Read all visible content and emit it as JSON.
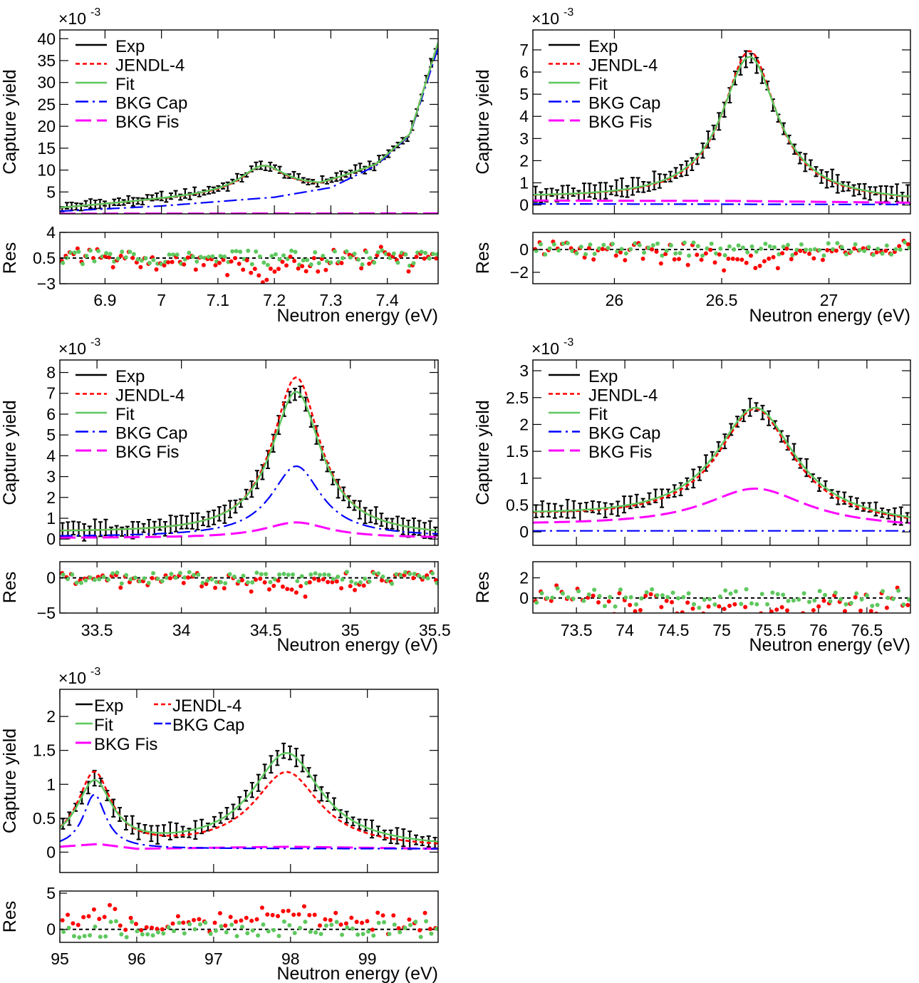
{
  "legend_labels": [
    "Exp",
    "JENDL-4",
    "Fit",
    "BKG Cap",
    "BKG Fis"
  ],
  "axis_labels": {
    "capture": "Capture yield",
    "residual": "Res",
    "energy": "Neutron energy (eV)",
    "exponent": "×10",
    "exponent_power": "-3"
  },
  "colors": {
    "exp": "#000000",
    "jendl": "#ff0000",
    "fit": "#5ec85e",
    "bkg_cap": "#0000ff",
    "bkg_fis": "#ff00ff"
  },
  "chart_data": [
    {
      "type": "line",
      "xlim": [
        6.82,
        7.49
      ],
      "ylim": [
        0,
        42
      ],
      "yticks": [
        5,
        10,
        15,
        20,
        25,
        30,
        35,
        40
      ],
      "res_ylim": [
        -3,
        4
      ],
      "res_ticks": [
        -3,
        0.5,
        4
      ],
      "xticks": [
        6.9,
        7.0,
        7.1,
        7.2,
        7.3,
        7.4
      ],
      "xticklabels": [
        "6.9",
        "7",
        "7.1",
        "7.2",
        "7.3",
        "7.4"
      ],
      "legend": "top-left",
      "peaks": [
        {
          "x": 7.18,
          "h": 6.0,
          "g": 0.05
        }
      ],
      "fit_base": [
        [
          6.82,
          1.3
        ],
        [
          7.0,
          3.2
        ],
        [
          7.28,
          6.0
        ],
        [
          7.38,
          11.0
        ],
        [
          7.44,
          18.0
        ],
        [
          7.49,
          39.0
        ]
      ],
      "cap_base": [
        [
          6.82,
          0.6
        ],
        [
          7.0,
          1.8
        ],
        [
          7.2,
          3.8
        ],
        [
          7.3,
          6.0
        ],
        [
          7.38,
          11.0
        ],
        [
          7.44,
          18.0
        ],
        [
          7.49,
          38.0
        ]
      ],
      "fis_base": [
        [
          6.82,
          0.05
        ],
        [
          7.49,
          0.1
        ]
      ],
      "jendl_scale": 1.0,
      "exp_points": 80,
      "res_spread": 1.5
    },
    {
      "type": "line",
      "xlim": [
        25.62,
        27.38
      ],
      "ylim": [
        -0.4,
        7.9
      ],
      "yticks": [
        0,
        1,
        2,
        3,
        4,
        5,
        6,
        7
      ],
      "res_ylim": [
        -3,
        1.5
      ],
      "res_ticks": [
        -2,
        0
      ],
      "xticks": [
        26.0,
        26.5,
        27.0
      ],
      "xticklabels": [
        "26",
        "26.5",
        "27"
      ],
      "legend": "top-left",
      "peaks": [
        {
          "x": 26.63,
          "h": 6.5,
          "g": 0.16
        }
      ],
      "fit_base": [
        [
          25.62,
          0.3
        ],
        [
          27.38,
          0.1
        ]
      ],
      "cap_base": [
        [
          25.62,
          0.05
        ],
        [
          27.38,
          0.02
        ]
      ],
      "fis_base": [
        [
          25.62,
          0.2
        ],
        [
          26.6,
          0.18
        ],
        [
          27.38,
          0.1
        ]
      ],
      "jendl_scale": 1.04,
      "exp_points": 70,
      "res_spread": 0.9
    },
    {
      "type": "line",
      "xlim": [
        33.28,
        35.52
      ],
      "ylim": [
        -0.3,
        8.6
      ],
      "yticks": [
        0,
        1,
        2,
        3,
        4,
        5,
        6,
        7,
        8
      ],
      "res_ylim": [
        -5,
        2.3
      ],
      "res_ticks": [
        -5,
        0
      ],
      "xticks": [
        33.5,
        34.0,
        34.5,
        35.0,
        35.5
      ],
      "xticklabels": [
        "33.5",
        "34",
        "34.5",
        "35",
        "35.5"
      ],
      "legend": "top-left",
      "peaks": [
        {
          "x": 34.68,
          "h": 6.9,
          "g": 0.18
        }
      ],
      "fit_base": [
        [
          33.28,
          0.3
        ],
        [
          35.52,
          0.1
        ]
      ],
      "cap_base": [
        [
          33.28,
          0.1
        ],
        [
          34.68,
          2.8
        ],
        [
          35.52,
          0.05
        ]
      ],
      "cap_peak": true,
      "fis_base": [
        [
          33.28,
          0.05
        ],
        [
          34.68,
          0.8
        ],
        [
          35.52,
          0.05
        ]
      ],
      "fis_peak": true,
      "jendl_scale": 1.1,
      "exp_points": 70,
      "res_spread": 1.2
    },
    {
      "type": "line",
      "xlim": [
        73.05,
        76.95
      ],
      "ylim": [
        -0.25,
        3.2
      ],
      "yticks": [
        0,
        0.5,
        1,
        1.5,
        2,
        2.5,
        3
      ],
      "res_ylim": [
        -1.5,
        3.6
      ],
      "res_ticks": [
        0,
        2
      ],
      "xticks": [
        73.5,
        74.0,
        74.5,
        75.0,
        75.5,
        76.0,
        76.5
      ],
      "xticklabels": [
        "73.5",
        "74",
        "74.5",
        "75",
        "75.5",
        "76",
        "76.5"
      ],
      "legend": "top-left",
      "peaks": [
        {
          "x": 75.35,
          "h": 2.15,
          "g": 0.5
        }
      ],
      "fit_base": [
        [
          73.05,
          0.28
        ],
        [
          76.95,
          0.08
        ]
      ],
      "cap_base": [
        [
          73.05,
          0.02
        ],
        [
          76.95,
          0.02
        ]
      ],
      "fis_base": [
        [
          73.05,
          0.12
        ],
        [
          75.35,
          0.8
        ],
        [
          76.95,
          0.06
        ]
      ],
      "fis_peak": true,
      "jendl_scale": 0.99,
      "exp_points": 60,
      "res_spread": 1.4
    },
    {
      "type": "line",
      "xlim": [
        95.0,
        99.92
      ],
      "ylim": [
        -0.3,
        2.4
      ],
      "yticks": [
        0,
        0.5,
        1,
        1.5,
        2
      ],
      "res_ylim": [
        -1.8,
        5.3
      ],
      "res_ticks": [
        0,
        5
      ],
      "xticks": [
        95,
        96,
        97,
        98,
        99
      ],
      "xticklabels": [
        "95",
        "96",
        "97",
        "98",
        "99"
      ],
      "legend": "top-left-two-column",
      "peaks": [
        {
          "x": 95.45,
          "h": 0.95,
          "g": 0.28
        },
        {
          "x": 97.95,
          "h": 1.4,
          "g": 0.55
        }
      ],
      "fit_base": [
        [
          95.0,
          0.05
        ],
        [
          99.92,
          0.05
        ]
      ],
      "cap_base": [
        [
          95.0,
          0.05
        ],
        [
          99.92,
          0.05
        ]
      ],
      "cap_peak_first": true,
      "fis_base": [
        [
          95.0,
          0.08
        ],
        [
          95.5,
          0.12
        ],
        [
          96.0,
          0.05
        ],
        [
          98.0,
          0.08
        ],
        [
          99.92,
          0.05
        ]
      ],
      "jendl_scale": 0.8,
      "exp_points": 60,
      "res_spread": 1.6
    }
  ]
}
